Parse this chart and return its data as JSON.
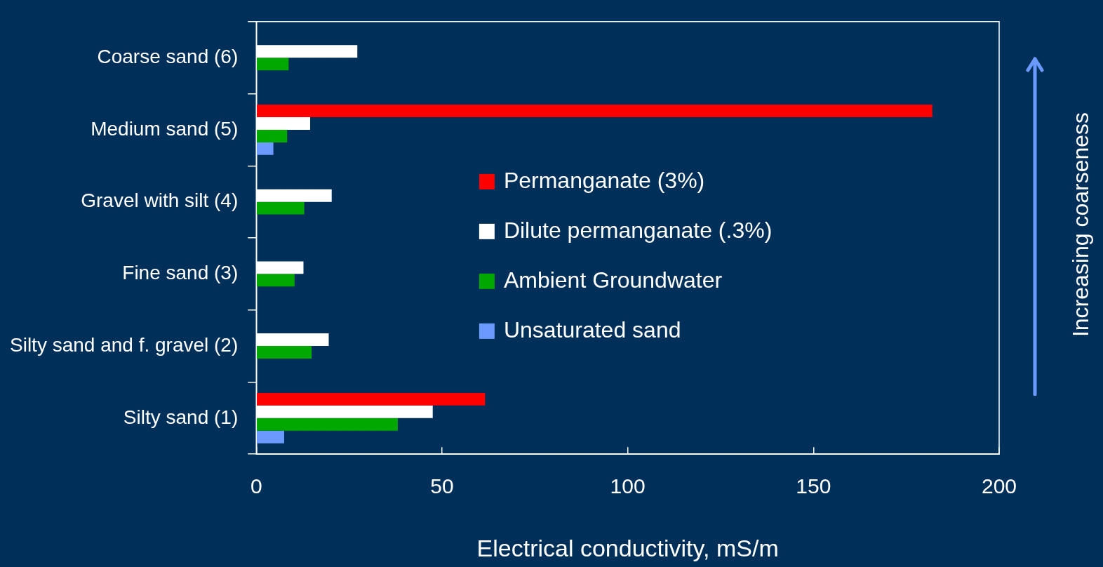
{
  "chart_data": {
    "type": "bar",
    "orientation": "horizontal",
    "xlabel": "Electrical conductivity, mS/m",
    "categories": [
      "Coarse sand (6)",
      "Medium sand (5)",
      "Gravel with silt (4)",
      "Fine sand (3)",
      "Silty sand and f. gravel (2)",
      "Silty sand (1)"
    ],
    "series": [
      {
        "name": "Permanganate (3%)",
        "color": "#ff0000",
        "values": [
          null,
          182,
          null,
          null,
          null,
          61.6
        ]
      },
      {
        "name": "Dilute permanganate (.3%)",
        "color": "#ffffff",
        "values": [
          27.2,
          14.5,
          20.3,
          12.7,
          19.5,
          47.5
        ]
      },
      {
        "name": "Ambient Groundwater",
        "color": "#00a800",
        "values": [
          8.7,
          8.3,
          12.9,
          10.3,
          14.9,
          38.1
        ]
      },
      {
        "name": "Unsaturated sand",
        "color": "#6b9aff",
        "values": [
          null,
          4.6,
          null,
          null,
          null,
          7.5
        ]
      }
    ],
    "xlim": [
      0,
      200
    ],
    "xticks": [
      0,
      50,
      100,
      150,
      200
    ],
    "grid": false,
    "legend": "center",
    "annotations": [
      "Increasing coarseness"
    ]
  }
}
